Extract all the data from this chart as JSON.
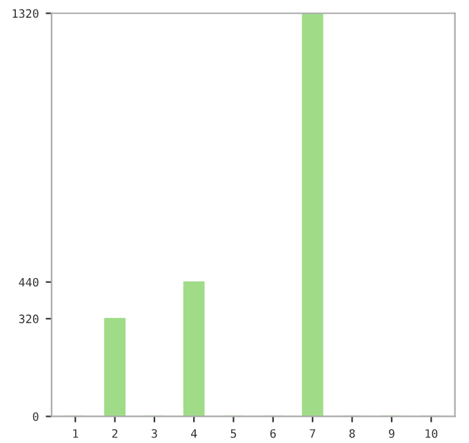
{
  "chart_data": {
    "type": "bar",
    "categories": [
      "1",
      "2",
      "3",
      "4",
      "5",
      "6",
      "7",
      "8",
      "9",
      "10"
    ],
    "values": [
      0,
      320,
      0,
      440,
      0,
      0,
      1320,
      0,
      0,
      0
    ],
    "color": "#a0dc88",
    "ylim": [
      0,
      1320
    ],
    "yticks": [
      0,
      320,
      440,
      1320
    ],
    "grid": false,
    "legend": false
  }
}
